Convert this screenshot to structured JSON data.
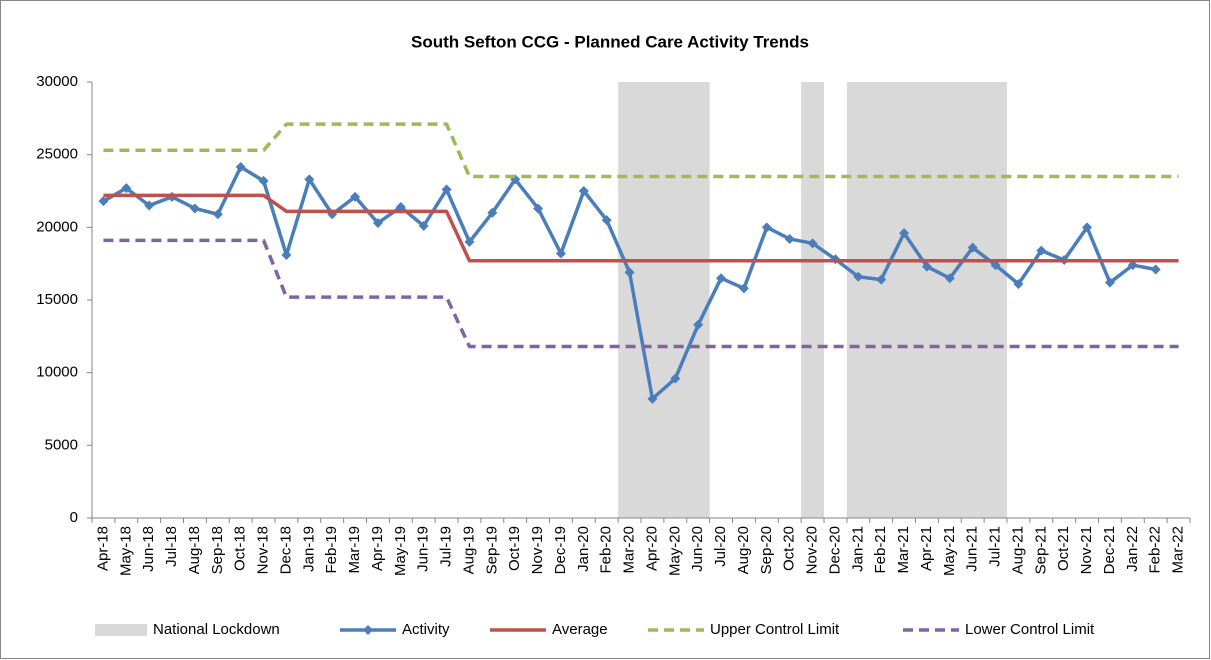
{
  "chart_data": {
    "type": "line",
    "title": "South Sefton CCG - Planned Care Activity Trends",
    "categories": [
      "Apr-18",
      "May-18",
      "Jun-18",
      "Jul-18",
      "Aug-18",
      "Sep-18",
      "Oct-18",
      "Nov-18",
      "Dec-18",
      "Jan-19",
      "Feb-19",
      "Mar-19",
      "Apr-19",
      "May-19",
      "Jun-19",
      "Jul-19",
      "Aug-19",
      "Sep-19",
      "Oct-19",
      "Nov-19",
      "Dec-19",
      "Jan-20",
      "Feb-20",
      "Mar-20",
      "Apr-20",
      "May-20",
      "Jun-20",
      "Jul-20",
      "Aug-20",
      "Sep-20",
      "Oct-20",
      "Nov-20",
      "Dec-20",
      "Jan-21",
      "Feb-21",
      "Mar-21",
      "Apr-21",
      "May-21",
      "Jun-21",
      "Jul-21",
      "Aug-21",
      "Sep-21",
      "Oct-21",
      "Nov-21",
      "Dec-21",
      "Jan-22",
      "Feb-22",
      "Mar-22"
    ],
    "ylim": [
      0,
      30000
    ],
    "yticks": [
      0,
      5000,
      10000,
      15000,
      20000,
      25000,
      30000
    ],
    "shaded": {
      "name": "National Lockdown",
      "color": "#d9d9d9",
      "periods": [
        [
          "Mar-20",
          "Jun-20"
        ],
        [
          "Nov-20",
          "Nov-20"
        ],
        [
          "Jan-21",
          "Jul-21"
        ]
      ]
    },
    "series": [
      {
        "name": "Activity",
        "color": "#4a7ebb",
        "dashed": false,
        "marker": "diamond",
        "values": [
          21800,
          22700,
          21500,
          22100,
          21300,
          20900,
          24150,
          23200,
          18100,
          23300,
          20900,
          22100,
          20300,
          21400,
          20100,
          22600,
          19000,
          21000,
          23300,
          21300,
          18200,
          22500,
          20500,
          16900,
          8200,
          9600,
          13300,
          16500,
          15800,
          20000,
          19200,
          18900,
          17800,
          16600,
          16400,
          19600,
          17300,
          16500,
          18600,
          17400,
          16100,
          18400,
          17750,
          20000,
          16200,
          17400,
          17100,
          null
        ]
      },
      {
        "name": "Average",
        "color": "#c0504d",
        "dashed": false,
        "values": [
          22200,
          22200,
          22200,
          22200,
          22200,
          22200,
          22200,
          22200,
          21100,
          21100,
          21100,
          21100,
          21100,
          21100,
          21100,
          21100,
          17700,
          17700,
          17700,
          17700,
          17700,
          17700,
          17700,
          17700,
          17700,
          17700,
          17700,
          17700,
          17700,
          17700,
          17700,
          17700,
          17700,
          17700,
          17700,
          17700,
          17700,
          17700,
          17700,
          17700,
          17700,
          17700,
          17700,
          17700,
          17700,
          17700,
          17700,
          17700
        ]
      },
      {
        "name": "Upper Control Limit",
        "color": "#9bbb59",
        "dashed": true,
        "values": [
          25300,
          25300,
          25300,
          25300,
          25300,
          25300,
          25300,
          25300,
          27100,
          27100,
          27100,
          27100,
          27100,
          27100,
          27100,
          27100,
          23500,
          23500,
          23500,
          23500,
          23500,
          23500,
          23500,
          23500,
          23500,
          23500,
          23500,
          23500,
          23500,
          23500,
          23500,
          23500,
          23500,
          23500,
          23500,
          23500,
          23500,
          23500,
          23500,
          23500,
          23500,
          23500,
          23500,
          23500,
          23500,
          23500,
          23500,
          23500
        ]
      },
      {
        "name": "Lower Control Limit",
        "color": "#8064a2",
        "dashed": true,
        "values": [
          19100,
          19100,
          19100,
          19100,
          19100,
          19100,
          19100,
          19100,
          15200,
          15200,
          15200,
          15200,
          15200,
          15200,
          15200,
          15200,
          11800,
          11800,
          11800,
          11800,
          11800,
          11800,
          11800,
          11800,
          11800,
          11800,
          11800,
          11800,
          11800,
          11800,
          11800,
          11800,
          11800,
          11800,
          11800,
          11800,
          11800,
          11800,
          11800,
          11800,
          11800,
          11800,
          11800,
          11800,
          11800,
          11800,
          11800,
          11800
        ]
      }
    ]
  }
}
